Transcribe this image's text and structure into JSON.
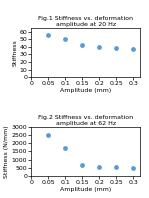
{
  "chart_data": [
    {
      "type": "scatter",
      "title": "Fig.1 Stiffness vs. deformation amplitude at 20 Hz",
      "x_label": "Amplitude (mm)",
      "y_label": "Stiffness",
      "x": [
        0.05,
        0.1,
        0.15,
        0.2,
        0.25,
        0.3
      ],
      "values": [
        55,
        50,
        42,
        40,
        38,
        37
      ],
      "xlim": [
        0,
        0.32
      ],
      "ylim": [
        0,
        65
      ],
      "xticks": [
        0,
        0.05,
        0.1,
        0.15,
        0.2,
        0.25,
        0.3
      ],
      "yticks": [
        0,
        10,
        20,
        30,
        40,
        50,
        60
      ],
      "color": "#5b9bd5",
      "marker": "circle"
    },
    {
      "type": "scatter",
      "title": "Fig.2 Stiffness vs. deformation amplitude at 62 Hz",
      "x_label": "Amplitude (mm)",
      "y_label": "Stiffness (N/mm)",
      "x": [
        0.05,
        0.1,
        0.15,
        0.2,
        0.25,
        0.3
      ],
      "values": [
        2500,
        1700,
        700,
        580,
        530,
        500
      ],
      "xlim": [
        0,
        0.32
      ],
      "ylim": [
        0,
        3000
      ],
      "xticks": [
        0,
        0.05,
        0.1,
        0.15,
        0.2,
        0.25,
        0.3
      ],
      "yticks": [
        0,
        500,
        1000,
        1500,
        2000,
        2500,
        3000
      ],
      "color": "#5b9bd5",
      "marker": "circle"
    }
  ]
}
